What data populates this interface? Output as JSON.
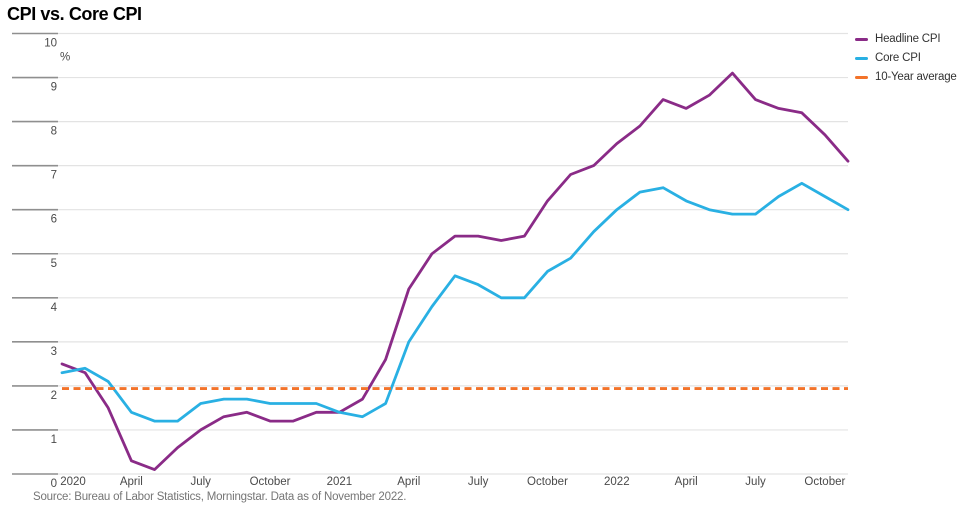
{
  "title": "CPI vs. Core CPI",
  "source_note": "Source: Bureau of Labor Statistics, Morningstar. Data as of November 2022.",
  "colors": {
    "headline_cpi": "#8a2b87",
    "core_cpi": "#29b0e3",
    "ten_year_average": "#f3732a",
    "gridline": "#e3e3e3",
    "axis_tick": "#8f8f8f",
    "axis_label": "#4a4a4a",
    "legend_text": "#333333"
  },
  "chart_data": {
    "type": "line",
    "title": "CPI vs. Core CPI",
    "x_domain": "monthly, Jan 2020 - Nov 2022",
    "x_tick_labels": [
      "2020",
      "April",
      "July",
      "October",
      "2021",
      "April",
      "July",
      "October",
      "2022",
      "April",
      "July",
      "October"
    ],
    "x_tick_month_positions": [
      0,
      3,
      6,
      9,
      12,
      15,
      18,
      21,
      24,
      27,
      30,
      33
    ],
    "y_unit_label": "%",
    "ylim": [
      0,
      10
    ],
    "y_tick_step": 1,
    "grid": "horizontal",
    "legend_position": "top-right",
    "series": [
      {
        "name": "Headline CPI",
        "style": "solid",
        "color": "#8a2b87",
        "values": [
          2.5,
          2.3,
          1.5,
          0.3,
          0.1,
          0.6,
          1.0,
          1.3,
          1.4,
          1.2,
          1.2,
          1.4,
          1.4,
          1.7,
          2.6,
          4.2,
          5.0,
          5.4,
          5.4,
          5.3,
          5.4,
          6.2,
          6.8,
          7.0,
          7.5,
          7.9,
          8.5,
          8.3,
          8.6,
          9.1,
          8.5,
          8.3,
          8.2,
          7.7,
          7.1
        ]
      },
      {
        "name": "Core CPI",
        "style": "solid",
        "color": "#29b0e3",
        "values": [
          2.3,
          2.4,
          2.1,
          1.4,
          1.2,
          1.2,
          1.6,
          1.7,
          1.7,
          1.6,
          1.6,
          1.6,
          1.4,
          1.3,
          1.6,
          3.0,
          3.8,
          4.5,
          4.3,
          4.0,
          4.0,
          4.6,
          4.9,
          5.5,
          6.0,
          6.4,
          6.5,
          6.2,
          6.0,
          5.9,
          5.9,
          6.3,
          6.6,
          6.3,
          6.0
        ]
      },
      {
        "name": "10-Year average",
        "style": "dashed",
        "color": "#f3732a",
        "constant_value": 1.94
      }
    ]
  }
}
